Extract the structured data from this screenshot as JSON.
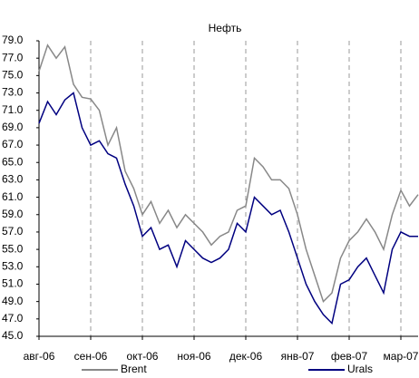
{
  "chart_data": {
    "type": "line",
    "title": "Нефть",
    "categories": [
      "авг-06",
      null,
      null,
      null,
      null,
      null,
      "сен-06",
      null,
      null,
      null,
      null,
      null,
      "окт-06",
      null,
      null,
      null,
      null,
      null,
      "ноя-06",
      null,
      null,
      null,
      null,
      null,
      "дек-06",
      null,
      null,
      null,
      null,
      null,
      "янв-07",
      null,
      null,
      null,
      null,
      null,
      "фев-07",
      null,
      null,
      null,
      null,
      null,
      "мар-07",
      null,
      null
    ],
    "series": [
      {
        "name": "Brent",
        "color": "#888888",
        "values": [
          75.5,
          78.5,
          77,
          78.3,
          74,
          72.5,
          72.3,
          71,
          67,
          69,
          64,
          62,
          59,
          60.5,
          58,
          59.5,
          57.5,
          59,
          58,
          57,
          55.5,
          56.5,
          57,
          59.5,
          60,
          65.5,
          64.5,
          63,
          63,
          62,
          59,
          55,
          52,
          49,
          50,
          54,
          56,
          57,
          58.5,
          57,
          55,
          59,
          61.8,
          60,
          61.3
        ]
      },
      {
        "name": "Urals",
        "color": "#000080",
        "values": [
          69.5,
          72,
          70.5,
          72.2,
          73,
          69,
          67,
          67.5,
          66,
          65.5,
          62.5,
          60,
          56.5,
          57.5,
          55,
          55.5,
          53,
          56,
          55,
          54,
          53.5,
          54,
          55,
          58,
          57,
          61,
          60,
          59,
          59.5,
          57,
          54,
          51,
          49,
          47.5,
          46.5,
          51,
          51.5,
          53,
          54,
          52,
          50,
          55,
          57,
          56.5,
          56.5
        ]
      }
    ],
    "ylim": [
      45,
      79
    ],
    "yticks": [
      {
        "value": 45,
        "label": "45.0"
      },
      {
        "value": 47,
        "label": "47.0"
      },
      {
        "value": 49,
        "label": "49.0"
      },
      {
        "value": 51,
        "label": "51.0"
      },
      {
        "value": 53,
        "label": "53.0"
      },
      {
        "value": 55,
        "label": "55.0"
      },
      {
        "value": 57,
        "label": "57.0"
      },
      {
        "value": 59,
        "label": "59.0"
      },
      {
        "value": 61,
        "label": "61.0"
      },
      {
        "value": 63,
        "label": "63.0"
      },
      {
        "value": 65,
        "label": "65.0"
      },
      {
        "value": 67,
        "label": "67.0"
      },
      {
        "value": 69,
        "label": "69.0"
      },
      {
        "value": 71,
        "label": "71.0"
      },
      {
        "value": 73,
        "label": "73.0"
      },
      {
        "value": 75,
        "label": "75.0"
      },
      {
        "value": 77,
        "label": "77.0"
      },
      {
        "value": 79,
        "label": "79.0"
      }
    ],
    "xgrid": true,
    "legend": "bottom"
  }
}
